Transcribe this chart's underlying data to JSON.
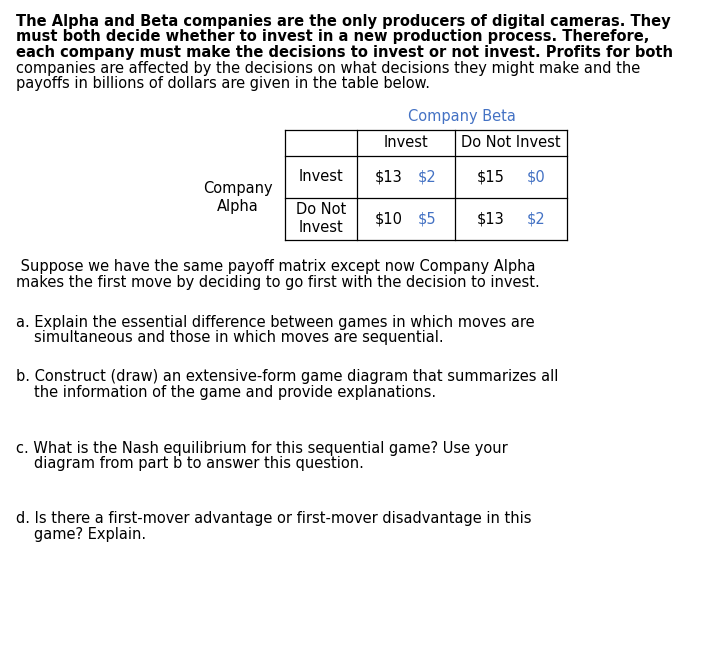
{
  "intro_lines_bold": [
    "The Alpha and Beta companies are the only producers of digital cameras. They",
    "must both decide whether to invest in a new production process. Therefore,",
    "each company must make the decisions to invest or not invest. Profits for both",
    "companies are affected by the decisions on what decisions they might make and the",
    "payoffs in billions of dollars are given in the table below."
  ],
  "intro_bold_count": 3,
  "company_beta_label": "Company Beta",
  "invest_label": "Invest",
  "do_not_invest_label": "Do Not Invest",
  "company_alpha_label": "Company\nAlpha",
  "row1_label": "Invest",
  "row2_label": "Do Not\nInvest",
  "cell_11_alpha": "$13",
  "cell_11_beta": "$2",
  "cell_12_alpha": "$15",
  "cell_12_beta": "$0",
  "cell_21_alpha": "$10",
  "cell_21_beta": "$5",
  "cell_22_alpha": "$13",
  "cell_22_beta": "$2",
  "beta_color": "#4472C4",
  "suppose_line1": " Suppose we have the same payoff matrix except now Company Alpha",
  "suppose_line2": "makes the first move by deciding to go first with the decision to invest.",
  "q_a1": "a. Explain the essential difference between games in which moves are",
  "q_a2": "   simultaneous and those in which moves are sequential.",
  "q_b1": "b. Construct (draw) an extensive-form game diagram that summarizes all",
  "q_b2": "   the information of the game and provide explanations.",
  "q_c1": "c. What is the Nash equilibrium for this sequential game? Use your",
  "q_c2": "   diagram from part b to answer this question.",
  "q_d1": "d. Is there a first-mover advantage or first-mover disadvantage in this",
  "q_d2": "   game? Explain.",
  "bg_color": "#ffffff",
  "text_color": "#000000",
  "font_size": 10.5,
  "table_font_size": 10.5
}
